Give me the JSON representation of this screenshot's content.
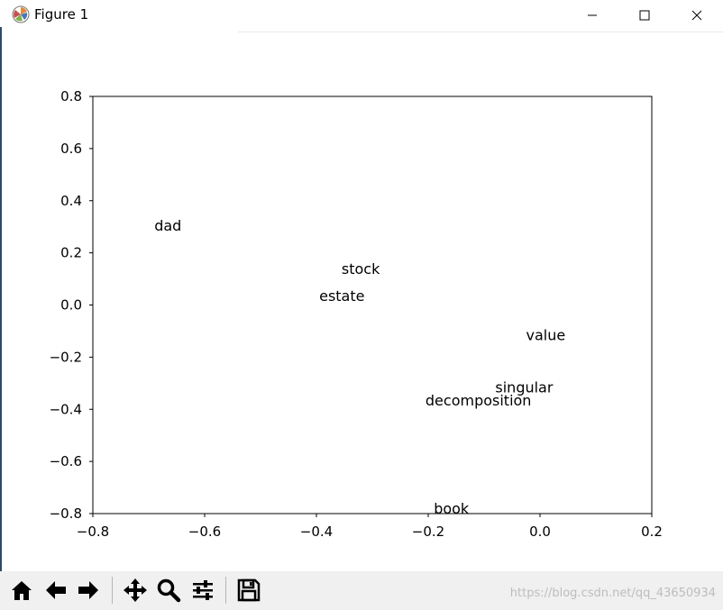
{
  "window": {
    "title": "Figure 1",
    "icon": "matplotlib-icon",
    "controls": [
      "minimize-icon",
      "maximize-icon",
      "close-icon"
    ]
  },
  "toolbar": {
    "buttons": [
      "home-icon",
      "back-arrow-icon",
      "forward-arrow-icon",
      "pan-icon",
      "zoom-icon",
      "configure-subplots-icon",
      "save-icon"
    ]
  },
  "watermark": "https://blog.csdn.net/qq_43650934",
  "chart_data": {
    "type": "scatter",
    "xlim": [
      -0.8,
      0.2
    ],
    "ylim": [
      -0.8,
      0.8
    ],
    "xticks": [
      -0.8,
      -0.6,
      -0.4,
      -0.2,
      0.0,
      0.2
    ],
    "yticks": [
      -0.8,
      -0.6,
      -0.4,
      -0.2,
      0.0,
      0.2,
      0.4,
      0.6,
      0.8
    ],
    "xtick_labels": [
      "−0.8",
      "−0.6",
      "−0.4",
      "−0.2",
      "0.0",
      "0.2"
    ],
    "ytick_labels": [
      "−0.8",
      "−0.6",
      "−0.4",
      "−0.2",
      "0.0",
      "0.2",
      "0.4",
      "0.6",
      "0.8"
    ],
    "grid": false,
    "points": [
      {
        "label": "dad",
        "x": -0.69,
        "y": 0.285
      },
      {
        "label": "stock",
        "x": -0.355,
        "y": 0.12
      },
      {
        "label": "estate",
        "x": -0.395,
        "y": 0.015
      },
      {
        "label": "value",
        "x": -0.025,
        "y": -0.135
      },
      {
        "label": "singular",
        "x": -0.08,
        "y": -0.335
      },
      {
        "label": "decomposition",
        "x": -0.205,
        "y": -0.385
      },
      {
        "label": "book",
        "x": -0.19,
        "y": -0.8
      }
    ]
  }
}
